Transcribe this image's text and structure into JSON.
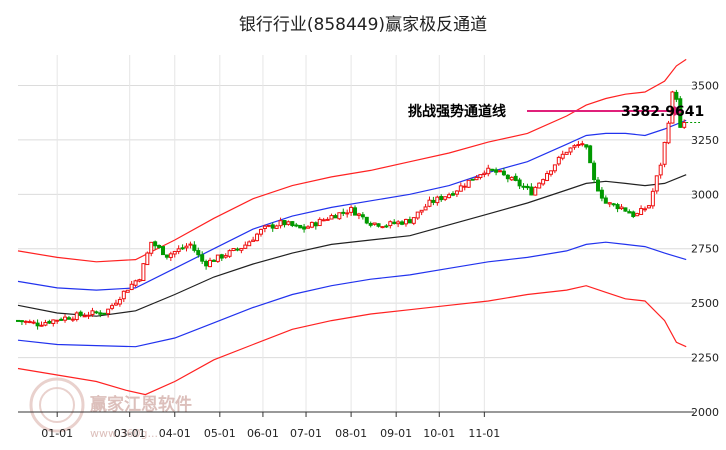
{
  "chart_data": {
    "type": "candlestick",
    "title": "银行行业(858449)赢家极反通道",
    "ylim": [
      2000,
      3640
    ],
    "y_ticks": [
      2000,
      2250,
      2500,
      2750,
      3000,
      3250,
      3500
    ],
    "x_ticks": [
      "01-01",
      "03-01",
      "04-01",
      "05-01",
      "06-01",
      "07-01",
      "08-01",
      "09-01",
      "10-01",
      "11-01"
    ],
    "grid": true,
    "annotation": {
      "label": "挑战强势通道线",
      "value_text": "3382.9641",
      "value": 3382.9641
    },
    "price_keypoints": [
      [
        0,
        2420
      ],
      [
        10,
        2405
      ],
      [
        22,
        2430
      ],
      [
        35,
        2450
      ],
      [
        45,
        2460
      ],
      [
        55,
        2560
      ],
      [
        62,
        2620
      ],
      [
        68,
        2780
      ],
      [
        76,
        2720
      ],
      [
        88,
        2770
      ],
      [
        95,
        2680
      ],
      [
        105,
        2720
      ],
      [
        115,
        2760
      ],
      [
        125,
        2840
      ],
      [
        135,
        2870
      ],
      [
        145,
        2840
      ],
      [
        160,
        2900
      ],
      [
        170,
        2930
      ],
      [
        180,
        2870
      ],
      [
        188,
        2860
      ],
      [
        200,
        2880
      ],
      [
        210,
        2960
      ],
      [
        222,
        3010
      ],
      [
        230,
        3060
      ],
      [
        238,
        3110
      ],
      [
        245,
        3100
      ],
      [
        253,
        3060
      ],
      [
        262,
        3010
      ],
      [
        270,
        3100
      ],
      [
        280,
        3200
      ],
      [
        289,
        3240
      ],
      [
        294,
        3060
      ],
      [
        300,
        2960
      ],
      [
        308,
        2940
      ],
      [
        315,
        2900
      ],
      [
        322,
        2950
      ],
      [
        328,
        3140
      ],
      [
        331,
        3280
      ],
      [
        335,
        3520
      ],
      [
        338,
        3300
      ],
      [
        341,
        3330
      ]
    ],
    "ma_line": [
      [
        0,
        2490
      ],
      [
        20,
        2455
      ],
      [
        40,
        2440
      ],
      [
        60,
        2465
      ],
      [
        80,
        2540
      ],
      [
        100,
        2620
      ],
      [
        120,
        2680
      ],
      [
        140,
        2730
      ],
      [
        160,
        2770
      ],
      [
        180,
        2790
      ],
      [
        200,
        2810
      ],
      [
        220,
        2860
      ],
      [
        240,
        2910
      ],
      [
        260,
        2960
      ],
      [
        280,
        3020
      ],
      [
        290,
        3050
      ],
      [
        300,
        3060
      ],
      [
        310,
        3050
      ],
      [
        320,
        3040
      ],
      [
        330,
        3050
      ],
      [
        341,
        3090
      ]
    ],
    "upper_blue": [
      [
        0,
        2600
      ],
      [
        20,
        2570
      ],
      [
        40,
        2560
      ],
      [
        60,
        2570
      ],
      [
        80,
        2660
      ],
      [
        100,
        2750
      ],
      [
        120,
        2840
      ],
      [
        140,
        2900
      ],
      [
        160,
        2940
      ],
      [
        180,
        2970
      ],
      [
        200,
        3000
      ],
      [
        220,
        3040
      ],
      [
        240,
        3100
      ],
      [
        260,
        3150
      ],
      [
        280,
        3230
      ],
      [
        290,
        3270
      ],
      [
        300,
        3280
      ],
      [
        310,
        3280
      ],
      [
        320,
        3270
      ],
      [
        330,
        3300
      ],
      [
        341,
        3340
      ]
    ],
    "lower_blue": [
      [
        0,
        2330
      ],
      [
        20,
        2310
      ],
      [
        40,
        2305
      ],
      [
        60,
        2300
      ],
      [
        80,
        2340
      ],
      [
        100,
        2410
      ],
      [
        120,
        2480
      ],
      [
        140,
        2540
      ],
      [
        160,
        2580
      ],
      [
        180,
        2610
      ],
      [
        200,
        2630
      ],
      [
        220,
        2660
      ],
      [
        240,
        2690
      ],
      [
        260,
        2710
      ],
      [
        280,
        2740
      ],
      [
        290,
        2770
      ],
      [
        300,
        2780
      ],
      [
        310,
        2770
      ],
      [
        320,
        2760
      ],
      [
        330,
        2730
      ],
      [
        341,
        2700
      ]
    ],
    "upper_red": [
      [
        0,
        2740
      ],
      [
        20,
        2710
      ],
      [
        40,
        2690
      ],
      [
        60,
        2700
      ],
      [
        80,
        2790
      ],
      [
        100,
        2890
      ],
      [
        120,
        2980
      ],
      [
        140,
        3040
      ],
      [
        160,
        3080
      ],
      [
        180,
        3110
      ],
      [
        200,
        3150
      ],
      [
        220,
        3190
      ],
      [
        240,
        3240
      ],
      [
        260,
        3280
      ],
      [
        280,
        3360
      ],
      [
        290,
        3410
      ],
      [
        300,
        3440
      ],
      [
        310,
        3460
      ],
      [
        320,
        3470
      ],
      [
        330,
        3520
      ],
      [
        336,
        3590
      ],
      [
        341,
        3620
      ]
    ],
    "lower_red": [
      [
        0,
        2200
      ],
      [
        20,
        2170
      ],
      [
        40,
        2140
      ],
      [
        55,
        2100
      ],
      [
        65,
        2080
      ],
      [
        80,
        2140
      ],
      [
        100,
        2240
      ],
      [
        120,
        2310
      ],
      [
        140,
        2380
      ],
      [
        160,
        2420
      ],
      [
        180,
        2450
      ],
      [
        200,
        2470
      ],
      [
        220,
        2490
      ],
      [
        240,
        2510
      ],
      [
        260,
        2540
      ],
      [
        280,
        2560
      ],
      [
        290,
        2580
      ],
      [
        300,
        2550
      ],
      [
        310,
        2520
      ],
      [
        320,
        2510
      ],
      [
        330,
        2420
      ],
      [
        336,
        2320
      ],
      [
        341,
        2300
      ]
    ],
    "x_tick_positions": [
      20,
      57,
      80,
      103,
      125,
      147,
      170,
      193,
      215,
      238
    ]
  },
  "watermark": {
    "text": "赢家江恩软件",
    "url": "www.360g..."
  }
}
